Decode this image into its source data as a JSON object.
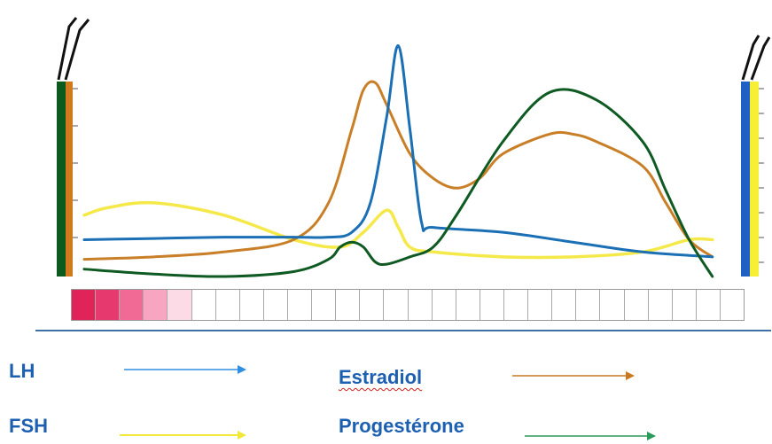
{
  "chart_data": {
    "type": "line",
    "x_range": [
      0,
      28
    ],
    "y_range": [
      0,
      100
    ],
    "grid": false,
    "legend_placement": "bottom",
    "series": [
      {
        "name": "LH",
        "color": "#1a6fb5",
        "x": [
          0,
          3,
          6,
          9,
          10.5,
          11.5,
          12.3,
          13,
          13.5,
          14,
          14.5,
          15,
          18,
          21,
          24,
          27
        ],
        "y": [
          15,
          15.5,
          16,
          16,
          16,
          18,
          30,
          65,
          94,
          60,
          22,
          20,
          18,
          14,
          10,
          8
        ]
      },
      {
        "name": "FSH",
        "color": "#f5e94a",
        "x": [
          0,
          1,
          3,
          6,
          9,
          11,
          12,
          13,
          13.5,
          14,
          15,
          18,
          21,
          24,
          26,
          27
        ],
        "y": [
          25,
          28,
          30,
          25,
          15,
          12,
          18,
          27,
          20,
          12,
          10,
          8,
          8,
          10,
          15,
          15
        ]
      },
      {
        "name": "Estradiol",
        "color": "#c87f28",
        "x": [
          0,
          3,
          6,
          9,
          10.5,
          11.5,
          12,
          12.5,
          13,
          14,
          15,
          16,
          17,
          18,
          20,
          21,
          22,
          24,
          25,
          26,
          27
        ],
        "y": [
          7,
          8,
          10,
          15,
          30,
          60,
          76,
          79,
          70,
          50,
          40,
          36,
          40,
          50,
          58,
          58,
          55,
          45,
          30,
          15,
          8
        ]
      },
      {
        "name": "Progestérone",
        "color": "#0e5a22",
        "x": [
          0,
          3,
          6,
          9,
          10.5,
          11,
          11.5,
          12,
          12.5,
          13,
          14,
          15,
          16,
          18,
          20,
          22,
          24,
          25,
          26,
          27
        ],
        "y": [
          3,
          1,
          0,
          2,
          7,
          12,
          14,
          12,
          6,
          5,
          8,
          12,
          25,
          55,
          75,
          72,
          55,
          35,
          15,
          0
        ]
      }
    ]
  },
  "legend": {
    "lh": "LH",
    "fsh": "FSH",
    "estradiol": "Estradiol",
    "progesterone": "Progestérone"
  },
  "colors": {
    "lh": "#2e8fe0",
    "fsh": "#f2e83a",
    "estradiol": "#c87a20",
    "progesterone": "#2a9a5a",
    "divider": "#3e6fa6",
    "menses": [
      "#e0245a",
      "#e63a6e",
      "#f06a95",
      "#f7a5c0",
      "#fcdbe6"
    ]
  }
}
